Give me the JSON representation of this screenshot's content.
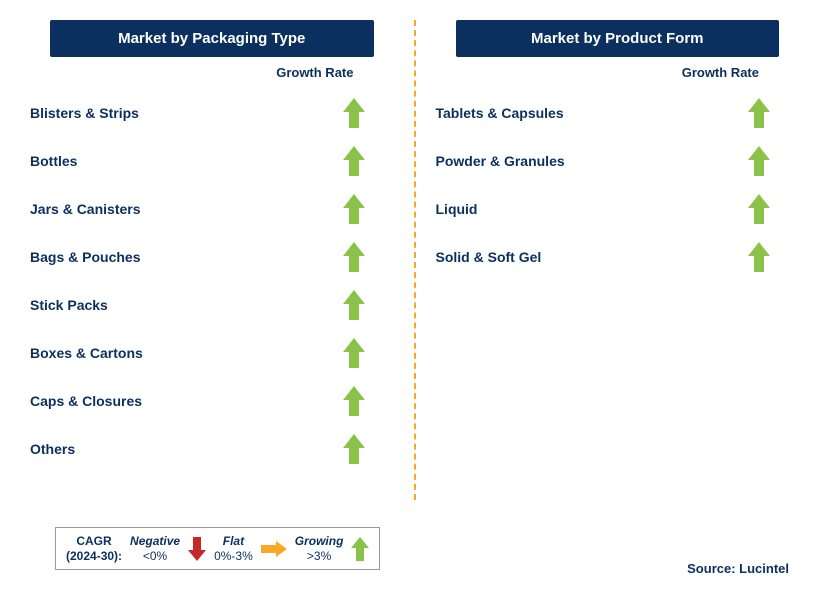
{
  "colors": {
    "header_bg": "#0b2f5e",
    "text_dark_blue": "#0b2f5e",
    "arrow_green": "#8bc34a",
    "arrow_red": "#c62828",
    "arrow_yellow": "#f9a825",
    "divider": "#f9a825"
  },
  "left": {
    "title": "Market by Packaging Type",
    "growth_label": "Growth Rate",
    "items": [
      "Blisters & Strips",
      "Bottles",
      "Jars & Canisters",
      "Bags & Pouches",
      "Stick Packs",
      "Boxes & Cartons",
      "Caps & Closures",
      "Others"
    ]
  },
  "right": {
    "title": "Market by Product Form",
    "growth_label": "Growth Rate",
    "items": [
      "Tablets & Capsules",
      "Powder & Granules",
      "Liquid",
      "Solid & Soft Gel"
    ]
  },
  "legend": {
    "prefix1": "CAGR",
    "prefix2": "(2024-30):",
    "negative_label": "Negative",
    "negative_range": "<0%",
    "flat_label": "Flat",
    "flat_range": "0%-3%",
    "growing_label": "Growing",
    "growing_range": ">3%"
  },
  "source": "Source: Lucintel"
}
